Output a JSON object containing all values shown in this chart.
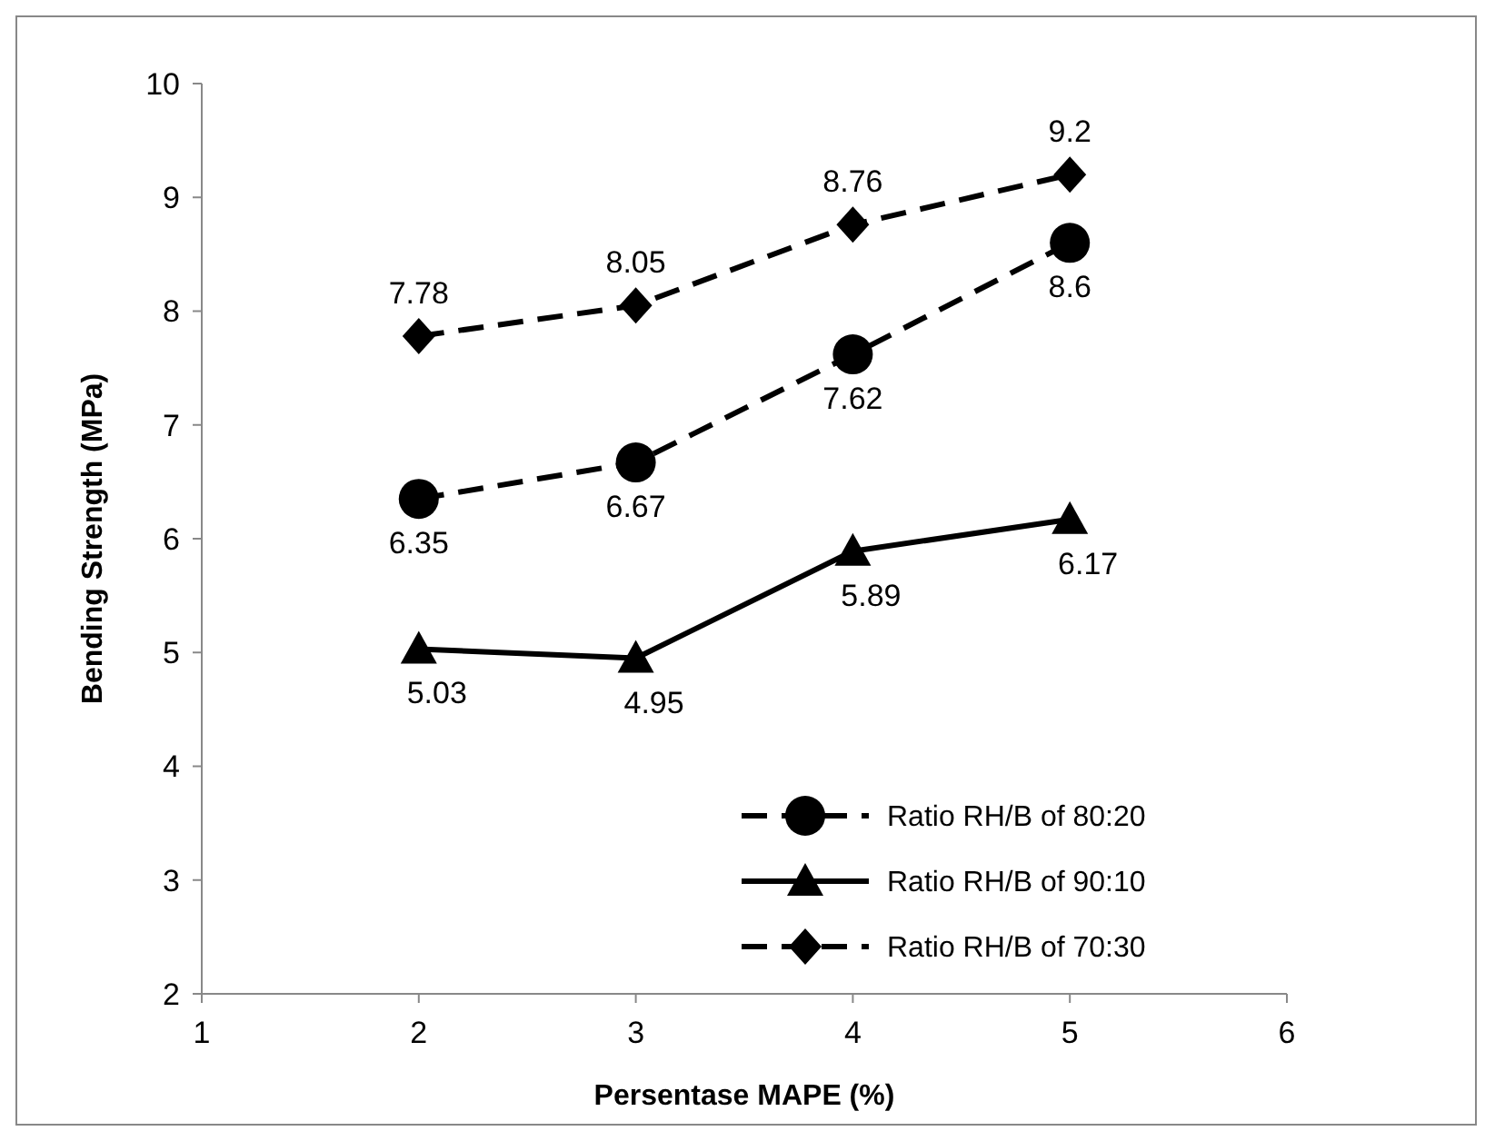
{
  "chart_data": {
    "type": "line",
    "xlabel": "Persentase MAPE (%)",
    "ylabel": "Bending Strength (MPa)",
    "x": [
      2,
      3,
      4,
      5
    ],
    "series": [
      {
        "name": "Ratio RH/B of 80:20",
        "color": "#000000",
        "values": [
          6.35,
          6.67,
          7.62,
          8.6
        ],
        "marker": "circle",
        "line_style": "dashed"
      },
      {
        "name": "Ratio RH/B of 90:10",
        "color": "#000000",
        "values": [
          5.03,
          4.95,
          5.89,
          6.17
        ],
        "marker": "triangle",
        "line_style": "solid"
      },
      {
        "name": "Ratio RH/B of 70:30",
        "color": "#000000",
        "values": [
          7.78,
          8.05,
          8.76,
          9.2
        ],
        "marker": "diamond",
        "line_style": "dashed"
      }
    ],
    "xlim": [
      1,
      6
    ],
    "xticks": [
      1,
      2,
      3,
      4,
      5,
      6
    ],
    "ylim": [
      2,
      10
    ],
    "yticks": [
      2,
      3,
      4,
      5,
      6,
      7,
      8,
      9,
      10
    ],
    "data_labels": true,
    "legend": "bottom right",
    "grid": false
  }
}
